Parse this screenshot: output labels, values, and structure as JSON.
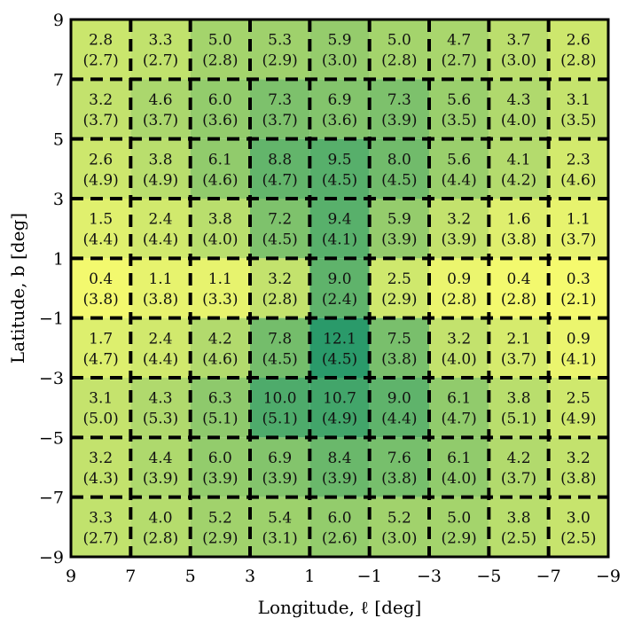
{
  "chart_data": {
    "type": "heatmap",
    "xlabel": "Longitude, ℓ [deg]",
    "ylabel": "Latitude, b [deg]",
    "xlim": [
      9,
      -9
    ],
    "ylim": [
      -9,
      9
    ],
    "x_ticks": [
      9,
      7,
      5,
      3,
      1,
      -1,
      -3,
      -5,
      -7,
      -9
    ],
    "y_ticks": [
      9,
      7,
      5,
      3,
      1,
      -1,
      -3,
      -5,
      -7,
      -9
    ],
    "x_tick_labels": [
      "9",
      "7",
      "5",
      "3",
      "1",
      "−1",
      "−3",
      "−5",
      "−7",
      "−9"
    ],
    "y_tick_labels": [
      "9",
      "7",
      "5",
      "3",
      "1",
      "−1",
      "−3",
      "−5",
      "−7",
      "−9"
    ],
    "colormap_range": [
      "#f5fa6e",
      "#2a9a6a"
    ],
    "grid_style": "dashed black",
    "rows": [
      {
        "b_range": [
          7,
          9
        ],
        "values": [
          "2.8",
          "3.3",
          "5.0",
          "5.3",
          "5.9",
          "5.0",
          "4.7",
          "3.7",
          "2.6"
        ],
        "errors": [
          "(2.7)",
          "(2.7)",
          "(2.8)",
          "(2.9)",
          "(3.0)",
          "(2.8)",
          "(2.7)",
          "(3.0)",
          "(2.8)"
        ]
      },
      {
        "b_range": [
          5,
          7
        ],
        "values": [
          "3.2",
          "4.6",
          "6.0",
          "7.3",
          "6.9",
          "7.3",
          "5.6",
          "4.3",
          "3.1"
        ],
        "errors": [
          "(3.7)",
          "(3.7)",
          "(3.6)",
          "(3.7)",
          "(3.6)",
          "(3.9)",
          "(3.5)",
          "(4.0)",
          "(3.5)"
        ]
      },
      {
        "b_range": [
          3,
          5
        ],
        "values": [
          "2.6",
          "3.8",
          "6.1",
          "8.8",
          "9.5",
          "8.0",
          "5.6",
          "4.1",
          "2.3"
        ],
        "errors": [
          "(4.9)",
          "(4.9)",
          "(4.6)",
          "(4.7)",
          "(4.5)",
          "(4.5)",
          "(4.4)",
          "(4.2)",
          "(4.6)"
        ]
      },
      {
        "b_range": [
          1,
          3
        ],
        "values": [
          "1.5",
          "2.4",
          "3.8",
          "7.2",
          "9.4",
          "5.9",
          "3.2",
          "1.6",
          "1.1"
        ],
        "errors": [
          "(4.4)",
          "(4.4)",
          "(4.0)",
          "(4.5)",
          "(4.1)",
          "(3.9)",
          "(3.9)",
          "(3.8)",
          "(3.7)"
        ]
      },
      {
        "b_range": [
          -1,
          1
        ],
        "values": [
          "0.4",
          "1.1",
          "1.1",
          "3.2",
          "9.0",
          "2.5",
          "0.9",
          "0.4",
          "0.3"
        ],
        "errors": [
          "(3.8)",
          "(3.8)",
          "(3.3)",
          "(2.8)",
          "(2.4)",
          "(2.9)",
          "(2.8)",
          "(2.8)",
          "(2.1)"
        ]
      },
      {
        "b_range": [
          -3,
          -1
        ],
        "values": [
          "1.7",
          "2.4",
          "4.2",
          "7.8",
          "12.1",
          "7.5",
          "3.2",
          "2.1",
          "0.9"
        ],
        "errors": [
          "(4.7)",
          "(4.4)",
          "(4.6)",
          "(4.5)",
          "(4.5)",
          "(3.8)",
          "(4.0)",
          "(3.7)",
          "(4.1)"
        ]
      },
      {
        "b_range": [
          -5,
          -3
        ],
        "values": [
          "3.1",
          "4.3",
          "6.3",
          "10.0",
          "10.7",
          "9.0",
          "6.1",
          "3.8",
          "2.5"
        ],
        "errors": [
          "(5.0)",
          "(5.3)",
          "(5.1)",
          "(5.1)",
          "(4.9)",
          "(4.4)",
          "(4.7)",
          "(5.1)",
          "(4.9)"
        ]
      },
      {
        "b_range": [
          -7,
          -5
        ],
        "values": [
          "3.2",
          "4.4",
          "6.0",
          "6.9",
          "8.4",
          "7.6",
          "6.1",
          "4.2",
          "3.2"
        ],
        "errors": [
          "(4.3)",
          "(3.9)",
          "(3.9)",
          "(3.9)",
          "(3.9)",
          "(3.8)",
          "(4.0)",
          "(3.7)",
          "(3.8)"
        ]
      },
      {
        "b_range": [
          -9,
          -7
        ],
        "values": [
          "3.3",
          "4.0",
          "5.2",
          "5.4",
          "6.0",
          "5.2",
          "5.0",
          "3.8",
          "3.0"
        ],
        "errors": [
          "(2.7)",
          "(2.8)",
          "(2.9)",
          "(3.1)",
          "(2.6)",
          "(3.0)",
          "(2.9)",
          "(2.5)",
          "(2.5)"
        ]
      }
    ]
  }
}
